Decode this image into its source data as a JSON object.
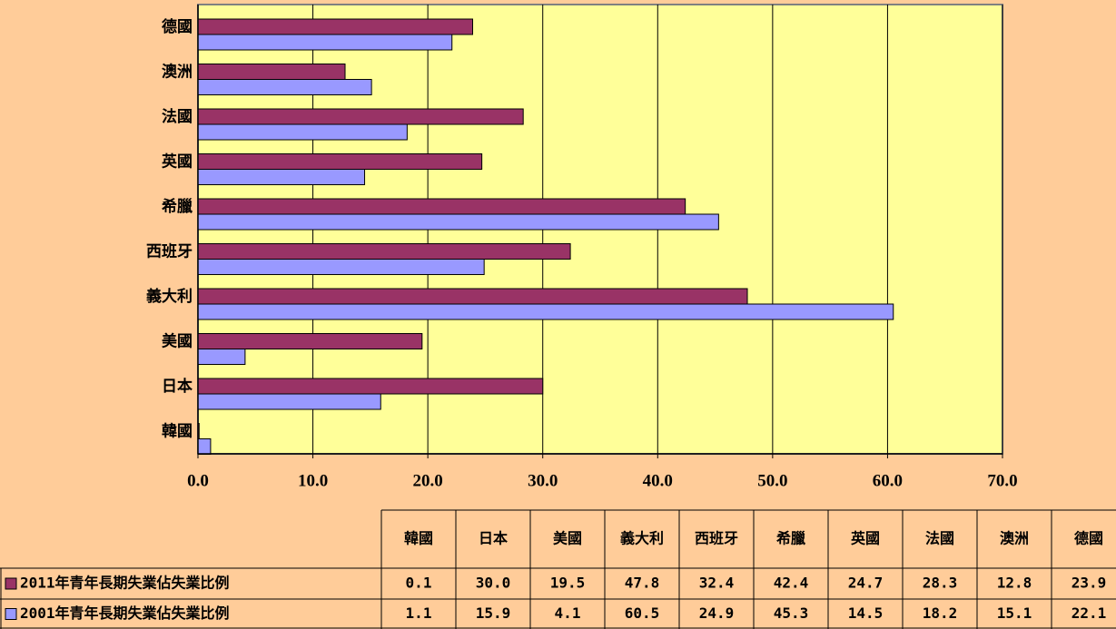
{
  "chart_data": {
    "type": "bar",
    "orientation": "horizontal",
    "categories": [
      "韓國",
      "日本",
      "美國",
      "義大利",
      "西班牙",
      "希臘",
      "英國",
      "法國",
      "澳洲",
      "德國"
    ],
    "series": [
      {
        "name": "2011年青年長期失業佔失業比例",
        "color": "#993366",
        "values": [
          0.1,
          30.0,
          19.5,
          47.8,
          32.4,
          42.4,
          24.7,
          28.3,
          12.8,
          23.9
        ],
        "value_labels": [
          "0.1",
          "30.0",
          "19.5",
          "47.8",
          "32.4",
          "42.4",
          "24.7",
          "28.3",
          "12.8",
          "23.9"
        ]
      },
      {
        "name": "2001年青年長期失業佔失業比例",
        "color": "#9999FF",
        "values": [
          1.1,
          15.9,
          4.1,
          60.5,
          24.9,
          45.3,
          14.5,
          18.2,
          15.1,
          22.1
        ],
        "value_labels": [
          "1.1",
          "15.9",
          "4.1",
          "60.5",
          "24.9",
          "45.3",
          "14.5",
          "18.2",
          "15.1",
          "22.1"
        ]
      }
    ],
    "xlim": [
      0,
      70
    ],
    "xticks": [
      {
        "value": 0,
        "label": "0.0"
      },
      {
        "value": 10,
        "label": "10.0"
      },
      {
        "value": 20,
        "label": "20.0"
      },
      {
        "value": 30,
        "label": "30.0"
      },
      {
        "value": 40,
        "label": "40.0"
      },
      {
        "value": 50,
        "label": "50.0"
      },
      {
        "value": 60,
        "label": "60.0"
      },
      {
        "value": 70,
        "label": "70.0"
      }
    ],
    "grid": true,
    "data_table": true
  }
}
